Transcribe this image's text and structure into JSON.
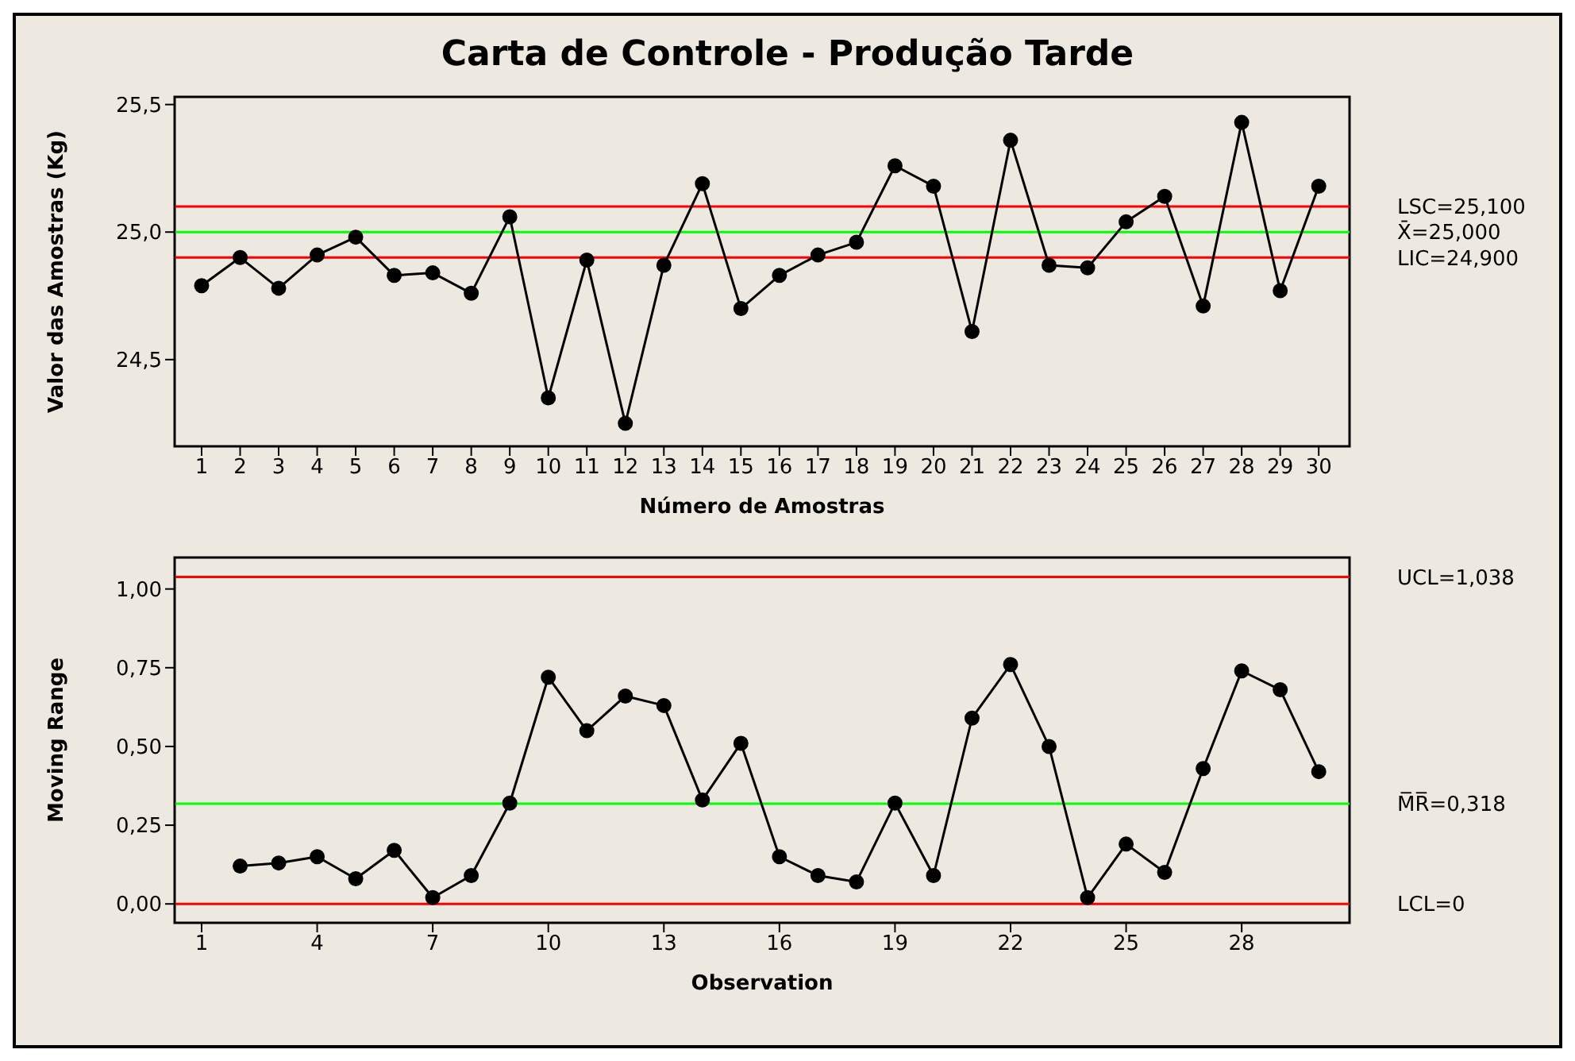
{
  "chart_data": [
    {
      "type": "line",
      "title": "Carta de Controle - Produção Tarde",
      "xlabel": "Número de Amostras",
      "ylabel": "Valor das Amostras (Kg)",
      "x": [
        1,
        2,
        3,
        4,
        5,
        6,
        7,
        8,
        9,
        10,
        11,
        12,
        13,
        14,
        15,
        16,
        17,
        18,
        19,
        20,
        21,
        22,
        23,
        24,
        25,
        26,
        27,
        28,
        29,
        30
      ],
      "series": [
        {
          "color": "#000000",
          "values": [
            24.79,
            24.9,
            24.78,
            24.91,
            24.98,
            24.83,
            24.84,
            24.76,
            25.06,
            24.35,
            24.89,
            24.25,
            24.87,
            25.19,
            24.7,
            24.83,
            24.91,
            24.96,
            25.26,
            25.18,
            24.61,
            25.36,
            24.87,
            24.86,
            25.04,
            25.14,
            24.71,
            25.43,
            24.77,
            25.18
          ]
        }
      ],
      "xlim": [
        0.3,
        30.8
      ],
      "xticks": [
        1,
        2,
        3,
        4,
        5,
        6,
        7,
        8,
        9,
        10,
        11,
        12,
        13,
        14,
        15,
        16,
        17,
        18,
        19,
        20,
        21,
        22,
        23,
        24,
        25,
        26,
        27,
        28,
        29,
        30
      ],
      "ylim": [
        24.16,
        25.53
      ],
      "yticks": [
        {
          "value": 24.5,
          "label": "24,5"
        },
        {
          "value": 25.0,
          "label": "25,0"
        },
        {
          "value": 25.5,
          "label": "25,5"
        }
      ],
      "ref_lines": [
        {
          "axis": "y",
          "value": 25.1,
          "label": "LSC=25,100",
          "color": "#ff0000"
        },
        {
          "axis": "y",
          "value": 25.0,
          "label": "X̄=25,000",
          "color": "#00ff00"
        },
        {
          "axis": "y",
          "value": 24.9,
          "label": "LIC=24,900",
          "color": "#ff0000"
        }
      ],
      "marker": "circle",
      "line_style": "solid",
      "grid": false,
      "legend": false
    },
    {
      "type": "line",
      "xlabel": "Observation",
      "ylabel": "Moving Range",
      "x": [
        2,
        3,
        4,
        5,
        6,
        7,
        8,
        9,
        10,
        11,
        12,
        13,
        14,
        15,
        16,
        17,
        18,
        19,
        20,
        21,
        22,
        23,
        24,
        25,
        26,
        27,
        28,
        29,
        30
      ],
      "series": [
        {
          "color": "#000000",
          "values": [
            0.12,
            0.13,
            0.15,
            0.08,
            0.17,
            0.02,
            0.09,
            0.32,
            0.72,
            0.55,
            0.66,
            0.63,
            0.33,
            0.51,
            0.15,
            0.09,
            0.07,
            0.32,
            0.09,
            0.59,
            0.76,
            0.5,
            0.02,
            0.19,
            0.1,
            0.43,
            0.74,
            0.68,
            0.42
          ]
        }
      ],
      "xlim": [
        0.3,
        30.8
      ],
      "xticks": [
        1,
        4,
        7,
        10,
        13,
        16,
        19,
        22,
        25,
        28
      ],
      "ylim": [
        -0.06,
        1.1
      ],
      "yticks": [
        {
          "value": 0,
          "label": "0,00"
        },
        {
          "value": 0.25,
          "label": "0,25"
        },
        {
          "value": 0.5,
          "label": "0,50"
        },
        {
          "value": 0.75,
          "label": "0,75"
        },
        {
          "value": 1.0,
          "label": "1,00"
        }
      ],
      "ref_lines": [
        {
          "axis": "y",
          "value": 1.038,
          "label": "UCL=1,038",
          "color": "#ff0000"
        },
        {
          "axis": "y",
          "value": 0.318,
          "label": "M̅R̅=0,318",
          "color": "#00ff00"
        },
        {
          "axis": "y",
          "value": 0,
          "label": "LCL=0",
          "color": "#ff0000"
        }
      ],
      "marker": "circle",
      "line_style": "solid",
      "grid": false,
      "legend": false
    }
  ]
}
